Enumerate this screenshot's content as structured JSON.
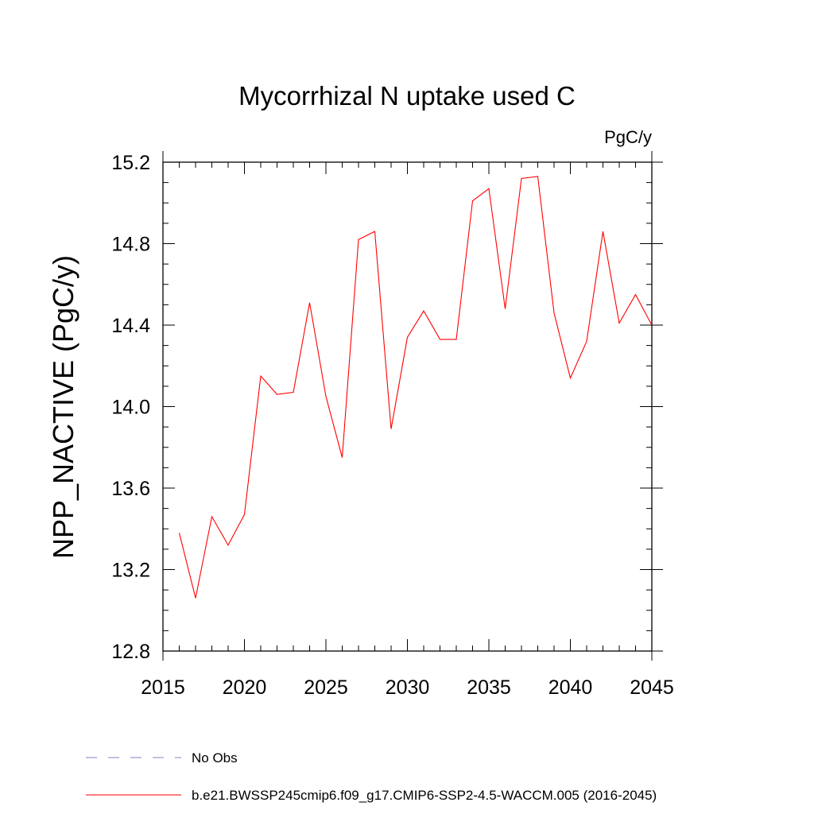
{
  "chart_data": {
    "type": "line",
    "title": "Mycorrhizal N uptake used C",
    "units": "PgC/y",
    "xlabel": "",
    "ylabel": "NPP_NACTIVE  (PgC/y)",
    "xlim": [
      2015,
      2045
    ],
    "ylim": [
      12.8,
      15.2
    ],
    "xticks": [
      2015,
      2020,
      2025,
      2030,
      2035,
      2040,
      2045
    ],
    "xtick_labels": [
      "2015",
      "2020",
      "2025",
      "2030",
      "2035",
      "2040",
      "2045"
    ],
    "yticks": [
      12.8,
      13.2,
      13.6,
      14.0,
      14.4,
      14.8,
      15.2
    ],
    "ytick_labels": [
      "12.8",
      "13.2",
      "13.6",
      "14.0",
      "14.4",
      "14.8",
      "15.2"
    ],
    "series": [
      {
        "name": "b.e21.BWSSP245cmip6.f09_g17.CMIP6-SSP2-4.5-WACCM.005 (2016-2045)",
        "color": "#ff0000",
        "x": [
          2016,
          2017,
          2018,
          2019,
          2020,
          2021,
          2022,
          2023,
          2024,
          2025,
          2026,
          2027,
          2028,
          2029,
          2030,
          2031,
          2032,
          2033,
          2034,
          2035,
          2036,
          2037,
          2038,
          2039,
          2040,
          2041,
          2042,
          2043,
          2044,
          2045
        ],
        "values": [
          13.38,
          13.06,
          13.46,
          13.32,
          13.47,
          14.15,
          14.06,
          14.07,
          14.51,
          14.05,
          13.75,
          14.82,
          14.86,
          13.89,
          14.34,
          14.47,
          14.33,
          14.33,
          15.01,
          15.07,
          14.48,
          15.12,
          15.13,
          14.46,
          14.14,
          14.32,
          14.86,
          14.41,
          14.55,
          14.4
        ]
      }
    ],
    "legend": [
      {
        "label": "No Obs",
        "style": "dashed",
        "color": "#8080c0"
      },
      {
        "label": "b.e21.BWSSP245cmip6.f09_g17.CMIP6-SSP2-4.5-WACCM.005 (2016-2045)",
        "style": "solid",
        "color": "#ff0000"
      }
    ]
  }
}
